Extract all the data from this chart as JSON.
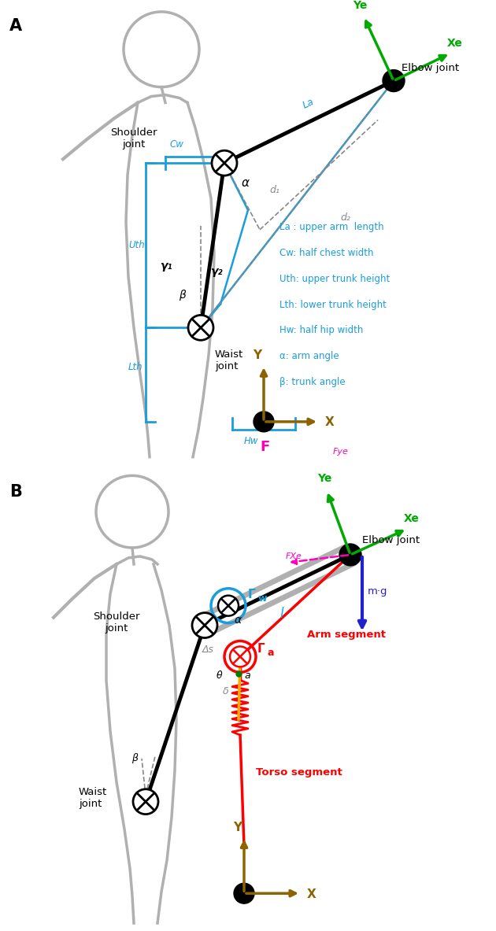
{
  "fig_width": 6.3,
  "fig_height": 11.8,
  "bg_color": "#ffffff",
  "colors": {
    "blue": "#1a9edb",
    "green": "#00aa00",
    "brown": "#8B6400",
    "red": "#ff0000",
    "magenta": "#ff00bb",
    "dark_blue": "#2222cc",
    "cyan": "#00aaff",
    "orange": "#ffaa00",
    "black": "#000000",
    "gray": "#888888",
    "light_gray": "#b0b0b0"
  },
  "legend_A": [
    "La : upper arm  length",
    "Cw: half chest width",
    "Uth: upper trunk height",
    "Lth: lower trunk height",
    "Hw: half hip width",
    "α: arm angle",
    "β: trunk angle"
  ]
}
